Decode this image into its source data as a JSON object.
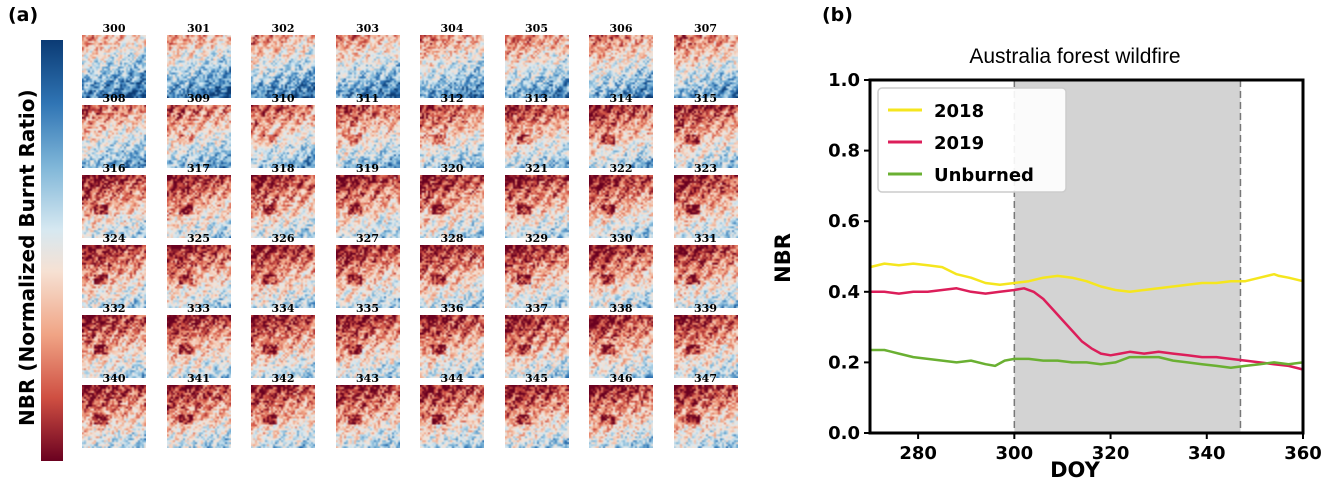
{
  "panel_a": {
    "label": "(a)",
    "colorbar_label": "NBR (Normalized Burnt Ratio)",
    "colormap": [
      "#6a0120",
      "#cf4f42",
      "#f0a485",
      "#f6e1d3",
      "#d6e8f1",
      "#7fb6d8",
      "#2f74b4",
      "#0b3b74"
    ],
    "tiles": [
      "300",
      "301",
      "302",
      "303",
      "304",
      "305",
      "306",
      "307",
      "308",
      "309",
      "310",
      "311",
      "312",
      "313",
      "314",
      "315",
      "316",
      "317",
      "318",
      "319",
      "320",
      "321",
      "322",
      "323",
      "324",
      "325",
      "326",
      "327",
      "328",
      "329",
      "330",
      "331",
      "332",
      "333",
      "334",
      "335",
      "336",
      "337",
      "338",
      "339",
      "340",
      "341",
      "342",
      "343",
      "344",
      "345",
      "346",
      "347"
    ]
  },
  "panel_b": {
    "label": "(b)"
  },
  "chart_data": {
    "type": "line",
    "title": "Australia forest wildfire",
    "xlabel": "DOY",
    "ylabel": "NBR",
    "xlim": [
      270,
      360
    ],
    "ylim": [
      0.0,
      1.0
    ],
    "xticks": [
      "280",
      "300",
      "320",
      "340",
      "360"
    ],
    "yticks": [
      "0.0",
      "0.2",
      "0.4",
      "0.6",
      "0.8",
      "1.0"
    ],
    "grid": false,
    "legend_position": "top-left",
    "shaded_region": {
      "x_start": 300,
      "x_end": 347,
      "color": "#d3d3d3"
    },
    "series": [
      {
        "name": "2018",
        "color": "#f5e61e",
        "x": [
          270,
          273,
          276,
          279,
          282,
          285,
          288,
          291,
          294,
          297,
          300,
          303,
          306,
          309,
          312,
          315,
          318,
          321,
          324,
          327,
          330,
          333,
          336,
          339,
          342,
          345,
          348,
          351,
          354,
          355,
          357,
          360
        ],
        "y": [
          0.47,
          0.48,
          0.475,
          0.48,
          0.475,
          0.47,
          0.45,
          0.44,
          0.425,
          0.42,
          0.425,
          0.43,
          0.44,
          0.445,
          0.44,
          0.43,
          0.415,
          0.405,
          0.4,
          0.405,
          0.41,
          0.415,
          0.42,
          0.425,
          0.425,
          0.43,
          0.43,
          0.44,
          0.45,
          0.445,
          0.44,
          0.43
        ]
      },
      {
        "name": "2019",
        "color": "#dc1e5a",
        "x": [
          270,
          273,
          276,
          279,
          282,
          285,
          288,
          291,
          294,
          297,
          300,
          302,
          304,
          306,
          308,
          310,
          312,
          314,
          316,
          318,
          320,
          322,
          324,
          327,
          330,
          333,
          336,
          339,
          342,
          345,
          348,
          351,
          354,
          357,
          360
        ],
        "y": [
          0.4,
          0.4,
          0.395,
          0.4,
          0.4,
          0.405,
          0.41,
          0.4,
          0.395,
          0.4,
          0.405,
          0.41,
          0.4,
          0.38,
          0.35,
          0.32,
          0.29,
          0.26,
          0.24,
          0.225,
          0.22,
          0.225,
          0.23,
          0.225,
          0.23,
          0.225,
          0.22,
          0.215,
          0.215,
          0.21,
          0.205,
          0.2,
          0.195,
          0.19,
          0.18
        ]
      },
      {
        "name": "Unburned",
        "color": "#6ab032",
        "x": [
          270,
          273,
          276,
          279,
          282,
          285,
          288,
          291,
          294,
          296,
          298,
          300,
          303,
          306,
          309,
          312,
          315,
          318,
          321,
          324,
          327,
          330,
          333,
          336,
          339,
          342,
          345,
          348,
          351,
          354,
          357,
          360
        ],
        "y": [
          0.235,
          0.235,
          0.225,
          0.215,
          0.21,
          0.205,
          0.2,
          0.205,
          0.195,
          0.19,
          0.205,
          0.21,
          0.21,
          0.205,
          0.205,
          0.2,
          0.2,
          0.195,
          0.2,
          0.215,
          0.215,
          0.215,
          0.205,
          0.2,
          0.195,
          0.19,
          0.185,
          0.19,
          0.195,
          0.2,
          0.195,
          0.2
        ]
      }
    ]
  }
}
